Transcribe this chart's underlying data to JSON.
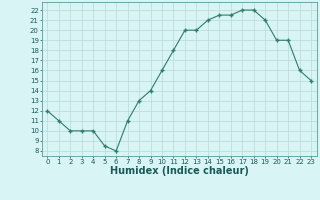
{
  "x": [
    0,
    1,
    2,
    3,
    4,
    5,
    6,
    7,
    8,
    9,
    10,
    11,
    12,
    13,
    14,
    15,
    16,
    17,
    18,
    19,
    20,
    21,
    22,
    23
  ],
  "y": [
    12,
    11,
    10,
    10,
    10,
    8.5,
    8,
    11,
    13,
    14,
    16,
    18,
    20,
    20,
    21,
    21.5,
    21.5,
    22,
    22,
    21,
    19,
    19,
    16,
    15
  ],
  "line_color": "#2e7d6e",
  "marker": "+",
  "marker_size": 3.5,
  "marker_linewidth": 1.0,
  "line_width": 0.8,
  "bg_color": "#d8f4f4",
  "grid_color": "#b8dada",
  "xlabel": "Humidex (Indice chaleur)",
  "xlabel_fontsize": 7,
  "tick_fontsize": 5,
  "ylabel_ticks": [
    8,
    9,
    10,
    11,
    12,
    13,
    14,
    15,
    16,
    17,
    18,
    19,
    20,
    21,
    22
  ],
  "xlim": [
    -0.5,
    23.5
  ],
  "ylim": [
    7.5,
    22.8
  ]
}
